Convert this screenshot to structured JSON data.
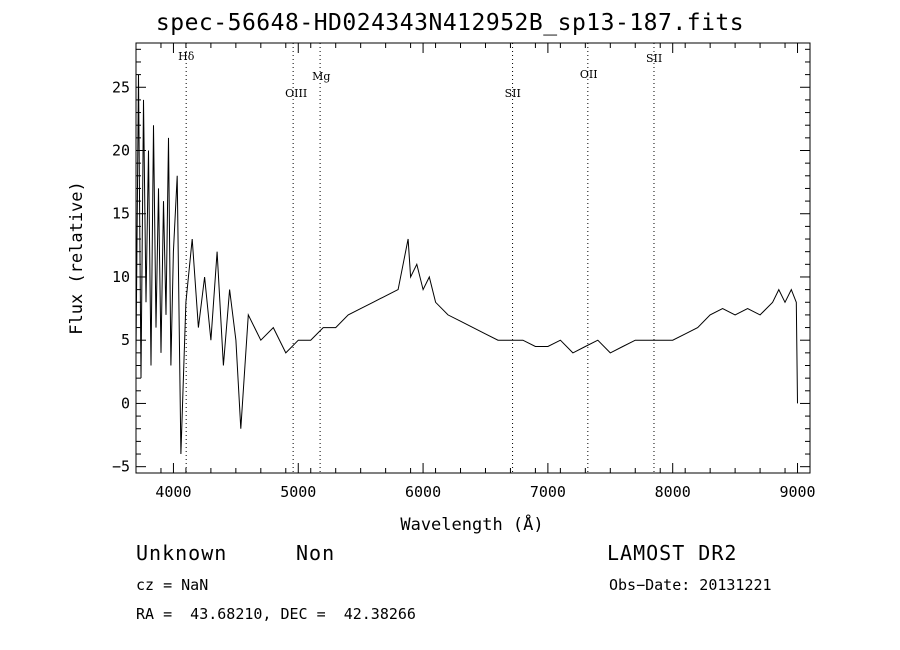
{
  "chart_data": {
    "type": "line",
    "title": "spec-56648-HD024343N412952B_sp13-187.fits",
    "xlabel": "Wavelength (Å)",
    "ylabel": "Flux (relative)",
    "xlim": [
      3700,
      9100
    ],
    "ylim": [
      -5.5,
      28.5
    ],
    "xticks": [
      4000,
      5000,
      6000,
      7000,
      8000,
      9000
    ],
    "yticks": [
      -5,
      0,
      5,
      10,
      15,
      20,
      25
    ],
    "ytick_labels": [
      "−5",
      "0",
      "5",
      "10",
      "15",
      "20",
      "25"
    ],
    "grid": false,
    "series": [
      {
        "x": [
          3700,
          3720,
          3740,
          3760,
          3780,
          3800,
          3820,
          3840,
          3860,
          3880,
          3900,
          3920,
          3940,
          3960,
          3980,
          4000,
          4030,
          4060,
          4100,
          4150,
          4200,
          4250,
          4300,
          4350,
          4400,
          4450,
          4500,
          4540,
          4600,
          4700,
          4800,
          4900,
          5000,
          5100,
          5200,
          5300,
          5400,
          5500,
          5600,
          5700,
          5800,
          5880,
          5900,
          5950,
          6000,
          6050,
          6100,
          6200,
          6300,
          6400,
          6500,
          6600,
          6700,
          6800,
          6900,
          7000,
          7100,
          7200,
          7300,
          7400,
          7500,
          7600,
          7700,
          7800,
          7900,
          8000,
          8100,
          8200,
          8300,
          8400,
          8500,
          8600,
          8700,
          8800,
          8850,
          8900,
          8950,
          8990,
          9000
        ],
        "y": [
          4,
          26,
          2,
          24,
          8,
          20,
          3,
          22,
          6,
          17,
          4,
          16,
          7,
          21,
          3,
          12,
          18,
          -4,
          8,
          13,
          6,
          10,
          5,
          12,
          3,
          9,
          5,
          -2,
          7,
          5,
          6,
          4,
          5,
          5,
          6,
          6,
          7,
          7.5,
          8,
          8.5,
          9,
          13,
          10,
          11,
          9,
          10,
          8,
          7,
          6.5,
          6,
          5.5,
          5,
          5,
          5,
          4.5,
          4.5,
          5,
          4,
          4.5,
          5,
          4,
          4.5,
          5,
          5,
          5,
          5,
          5.5,
          6,
          7,
          7.5,
          7,
          7.5,
          7,
          8,
          9,
          8,
          9,
          8,
          0
        ]
      }
    ],
    "lines": [
      {
        "label": "Hδ",
        "x": 4102
      },
      {
        "label": "OIII",
        "x": 4959
      },
      {
        "label": "Mg",
        "x": 5175
      },
      {
        "label": "SII",
        "x": 6717
      },
      {
        "label": "OII",
        "x": 7320
      },
      {
        "label": "SII",
        "x": 7850
      }
    ]
  },
  "info": {
    "class": "Unknown",
    "subclass": "Non",
    "survey": "LAMOST DR2",
    "cz": "cz = NaN",
    "obs_date": "Obs−Date: 20131221",
    "coords": "RA =  43.68210, DEC =  42.38266"
  }
}
